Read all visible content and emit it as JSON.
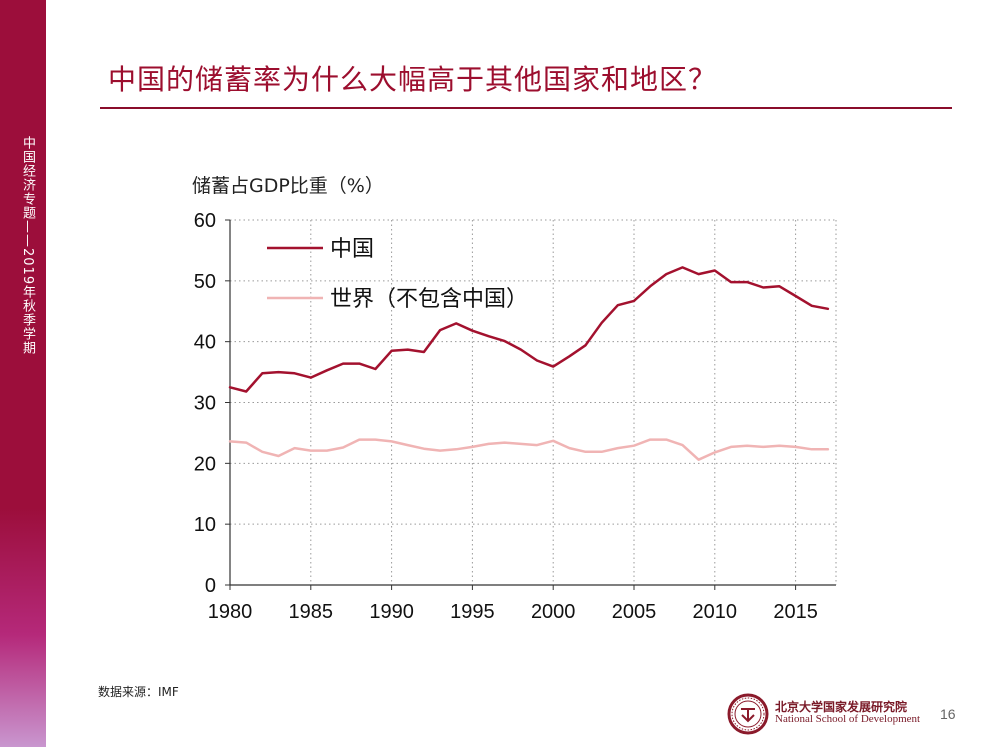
{
  "slide": {
    "title": "中国的储蓄率为什么大幅高于其他国家和地区？",
    "sidebar_label": "中国经济专题——2019年秋季学期",
    "source": "数据来源：IMF",
    "institution_cn": "北京大学国家发展研究院",
    "institution_en": "National School of Development",
    "page_number": "16"
  },
  "colors": {
    "brand": "#9c0e3b",
    "china": "#a3112e",
    "world": "#f0b4b4",
    "grid": "#9a9a9a"
  },
  "chart_data": {
    "type": "line",
    "ylabel": "储蓄占GDP比重（%）",
    "xlabel": "",
    "xlim": [
      1980,
      2017.5
    ],
    "ylim": [
      0,
      60
    ],
    "xticks": [
      1980,
      1985,
      1990,
      1995,
      2000,
      2005,
      2010,
      2015
    ],
    "yticks": [
      0,
      10,
      20,
      30,
      40,
      50,
      60
    ],
    "grid": true,
    "legend_position": "top-left",
    "x": [
      1980,
      1981,
      1982,
      1983,
      1984,
      1985,
      1986,
      1987,
      1988,
      1989,
      1990,
      1991,
      1992,
      1993,
      1994,
      1995,
      1996,
      1997,
      1998,
      1999,
      2000,
      2001,
      2002,
      2003,
      2004,
      2005,
      2006,
      2007,
      2008,
      2009,
      2010,
      2011,
      2012,
      2013,
      2014,
      2015,
      2016,
      2017
    ],
    "series": [
      {
        "name": "中国",
        "values": [
          32.5,
          31.8,
          34.8,
          35.0,
          34.8,
          34.1,
          35.3,
          36.4,
          36.4,
          35.5,
          38.5,
          38.7,
          38.3,
          41.9,
          43.0,
          41.8,
          40.9,
          40.1,
          38.7,
          36.9,
          35.9,
          37.6,
          39.4,
          43.1,
          46.0,
          46.7,
          49.1,
          51.1,
          52.2,
          51.1,
          51.7,
          49.8,
          49.8,
          48.9,
          49.1,
          47.5,
          45.9,
          45.4
        ]
      },
      {
        "name": "世界（不包含中国）",
        "values": [
          23.6,
          23.4,
          21.9,
          21.2,
          22.5,
          22.1,
          22.1,
          22.6,
          23.9,
          23.9,
          23.6,
          23.0,
          22.4,
          22.1,
          22.3,
          22.7,
          23.2,
          23.4,
          23.2,
          23.0,
          23.7,
          22.5,
          21.9,
          21.9,
          22.5,
          22.9,
          23.9,
          23.9,
          23.0,
          20.6,
          21.8,
          22.7,
          22.9,
          22.7,
          22.9,
          22.7,
          22.3,
          22.3
        ]
      }
    ]
  }
}
